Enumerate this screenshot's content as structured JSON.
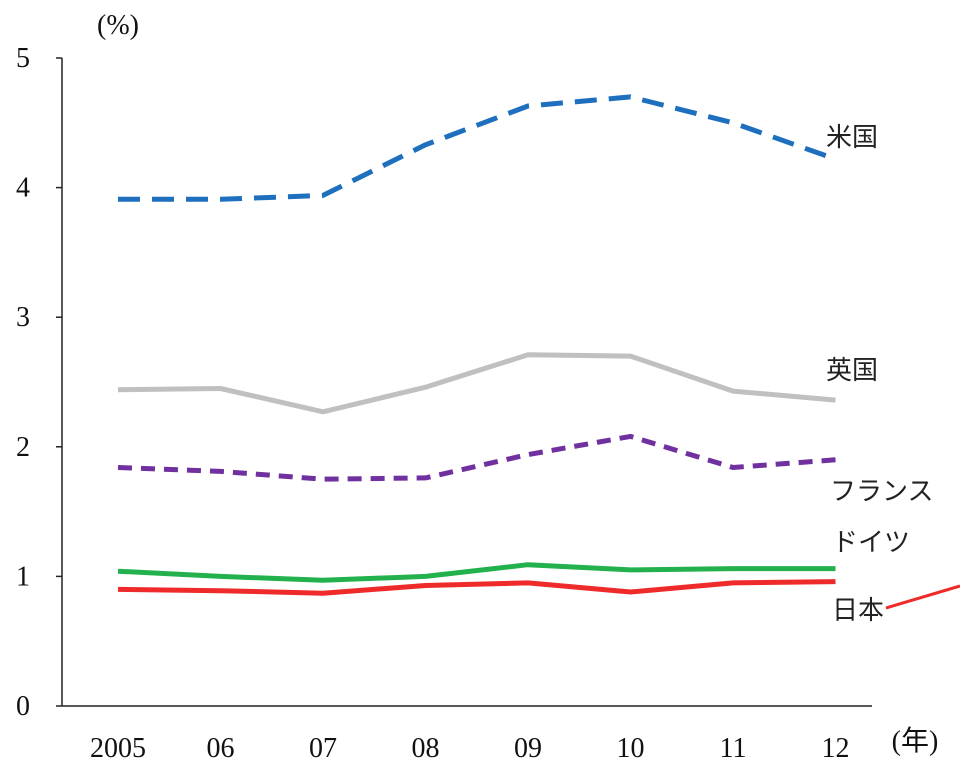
{
  "chart_data": {
    "type": "line",
    "title": "",
    "ylabel": "(%)",
    "xlabel": "(年)",
    "categories": [
      "2005",
      "06",
      "07",
      "08",
      "09",
      "10",
      "11",
      "12"
    ],
    "ylim": [
      0,
      5
    ],
    "yticks": [
      "0",
      "1",
      "2",
      "3",
      "4",
      "5"
    ],
    "grid": false,
    "series": [
      {
        "name": "米国",
        "color": "#1f6fbf",
        "style": "dashed",
        "values": [
          3.91,
          3.91,
          3.94,
          4.33,
          4.63,
          4.7,
          4.5,
          4.22
        ]
      },
      {
        "name": "英国",
        "color": "#c0c0c0",
        "style": "solid",
        "values": [
          2.44,
          2.45,
          2.27,
          2.46,
          2.71,
          2.7,
          2.43,
          2.36
        ]
      },
      {
        "name": "フランス",
        "color": "#7030a0",
        "style": "dashed",
        "values": [
          1.84,
          1.81,
          1.75,
          1.76,
          1.94,
          2.08,
          1.84,
          1.9
        ]
      },
      {
        "name": "ドイツ",
        "color": "#22b14c",
        "style": "solid",
        "values": [
          1.04,
          1.0,
          0.97,
          1.0,
          1.09,
          1.05,
          1.06,
          1.06
        ]
      },
      {
        "name": "日本",
        "color": "#ee2a2a",
        "style": "solid",
        "values": [
          0.9,
          0.89,
          0.87,
          0.93,
          0.95,
          0.88,
          0.95,
          0.96
        ]
      }
    ]
  }
}
